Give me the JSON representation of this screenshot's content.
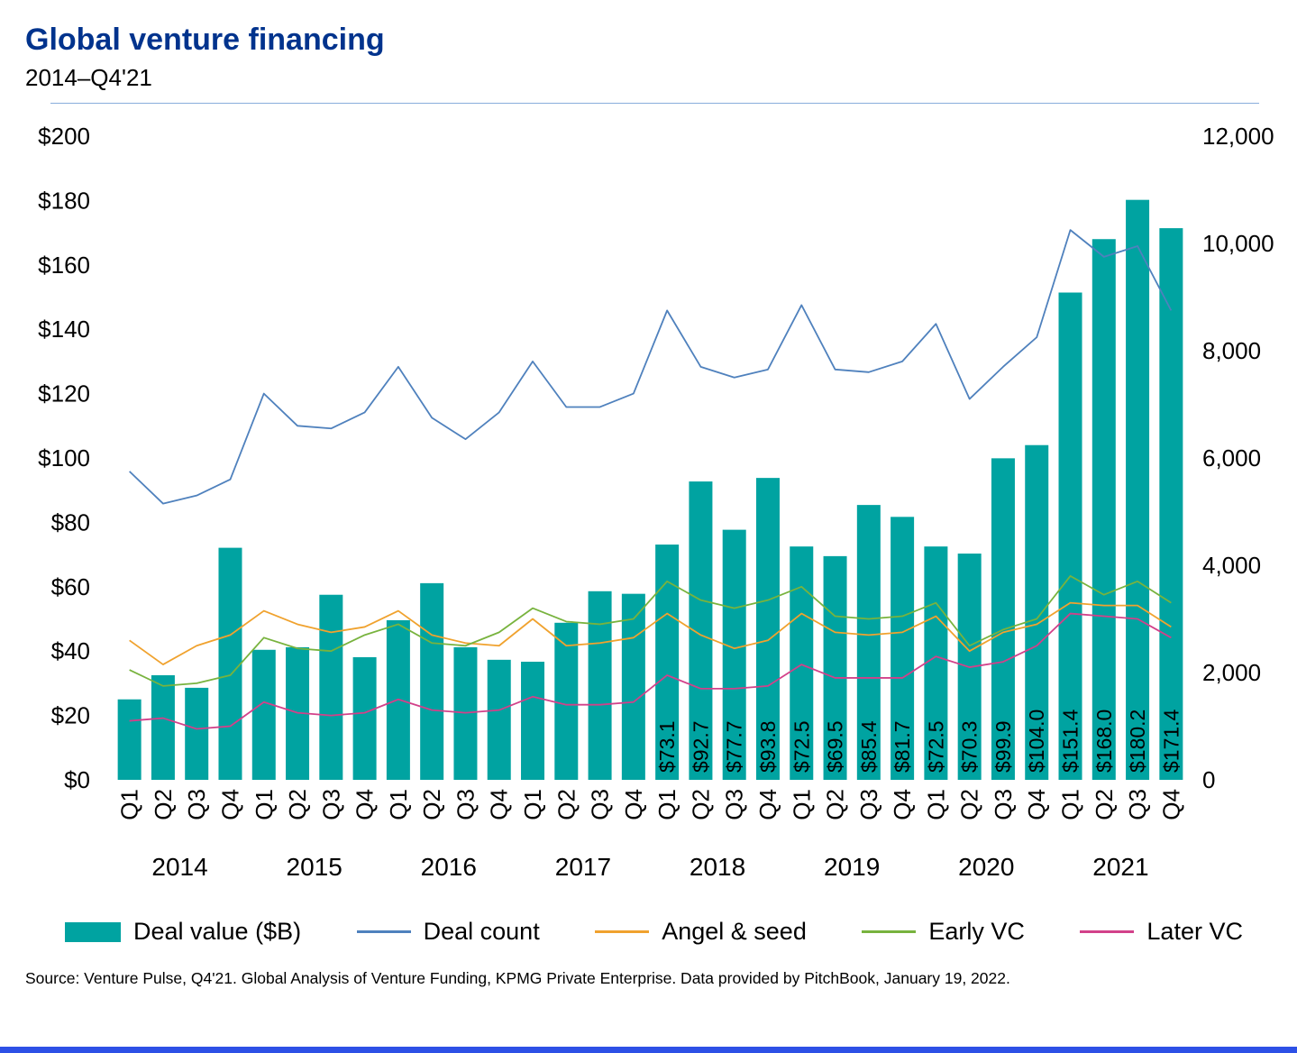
{
  "header": {
    "title": "Global venture financing",
    "subtitle": "2014–Q4'21"
  },
  "chart_data": {
    "type": "bar",
    "title": "Global venture financing",
    "subtitle": "2014–Q4'21",
    "x_quarters": [
      "Q1",
      "Q2",
      "Q3",
      "Q4",
      "Q1",
      "Q2",
      "Q3",
      "Q4",
      "Q1",
      "Q2",
      "Q3",
      "Q4",
      "Q1",
      "Q2",
      "Q3",
      "Q4",
      "Q1",
      "Q2",
      "Q3",
      "Q4",
      "Q1",
      "Q2",
      "Q3",
      "Q4",
      "Q1",
      "Q2",
      "Q3",
      "Q4",
      "Q1",
      "Q2",
      "Q3",
      "Q4"
    ],
    "years": [
      "2014",
      "2015",
      "2016",
      "2017",
      "2018",
      "2019",
      "2020",
      "2021"
    ],
    "left_axis": {
      "min": 0,
      "max": 200,
      "ticks": [
        "$0",
        "$20",
        "$40",
        "$60",
        "$80",
        "$100",
        "$120",
        "$140",
        "$160",
        "$180",
        "$200"
      ]
    },
    "right_axis": {
      "min": 0,
      "max": 12000,
      "ticks": [
        "0",
        "2,000",
        "4,000",
        "6,000",
        "8,000",
        "10,000",
        "12,000"
      ]
    },
    "bars": {
      "name": "Deal value ($B)",
      "color": "#00A3A1",
      "axis": "left",
      "values": [
        25.0,
        32.5,
        28.6,
        72.1,
        40.4,
        41.2,
        57.5,
        38.1,
        49.6,
        61.1,
        41.2,
        37.3,
        36.7,
        48.8,
        58.6,
        57.8,
        73.1,
        92.7,
        77.7,
        93.8,
        72.5,
        69.5,
        85.4,
        81.7,
        72.5,
        70.3,
        99.9,
        104.0,
        151.4,
        168.0,
        180.2,
        171.4
      ],
      "labels": [
        "",
        "",
        "",
        "",
        "",
        "",
        "",
        "",
        "",
        "",
        "",
        "",
        "",
        "",
        "",
        "",
        "$73.1",
        "$92.7",
        "$77.7",
        "$93.8",
        "$72.5",
        "$69.5",
        "$85.4",
        "$81.7",
        "$72.5",
        "$70.3",
        "$99.9",
        "$104.0",
        "$151.4",
        "$168.0",
        "$180.2",
        "$171.4"
      ]
    },
    "series": [
      {
        "name": "Deal count",
        "color": "#4F81BD",
        "axis": "right",
        "values": [
          5750,
          5150,
          5300,
          5600,
          7200,
          6600,
          6550,
          6850,
          7700,
          6750,
          6350,
          6850,
          7800,
          6950,
          6950,
          7200,
          8750,
          7700,
          7500,
          7650,
          8850,
          7650,
          7600,
          7800,
          8500,
          7100,
          7700,
          8250,
          10250,
          9750,
          9950,
          8750
        ]
      },
      {
        "name": "Angel & seed",
        "color": "#F0A22E",
        "axis": "right",
        "values": [
          2600,
          2150,
          2500,
          2700,
          3150,
          2900,
          2750,
          2850,
          3150,
          2700,
          2550,
          2500,
          3000,
          2500,
          2550,
          2650,
          3100,
          2700,
          2450,
          2600,
          3100,
          2750,
          2700,
          2750,
          3050,
          2400,
          2750,
          2900,
          3300,
          3250,
          3250,
          2850
        ]
      },
      {
        "name": "Early VC",
        "color": "#78B33E",
        "axis": "right",
        "values": [
          2050,
          1750,
          1800,
          1950,
          2650,
          2450,
          2400,
          2700,
          2900,
          2550,
          2500,
          2750,
          3200,
          2950,
          2900,
          3000,
          3700,
          3350,
          3200,
          3350,
          3600,
          3050,
          3000,
          3050,
          3300,
          2500,
          2800,
          3000,
          3800,
          3450,
          3700,
          3300
        ]
      },
      {
        "name": "Later VC",
        "color": "#D2418A",
        "axis": "right",
        "values": [
          1100,
          1150,
          950,
          1000,
          1450,
          1250,
          1200,
          1250,
          1500,
          1300,
          1250,
          1300,
          1550,
          1400,
          1400,
          1450,
          1950,
          1700,
          1700,
          1750,
          2150,
          1900,
          1900,
          1900,
          2300,
          2100,
          2200,
          2500,
          3100,
          3050,
          3000,
          2650
        ]
      }
    ],
    "grid": false,
    "legend_position": "bottom"
  },
  "legend": {
    "items": [
      {
        "label": "Deal value ($B)",
        "color": "#00A3A1",
        "type": "rect"
      },
      {
        "label": "Deal count",
        "color": "#4F81BD",
        "type": "line"
      },
      {
        "label": "Angel & seed",
        "color": "#F0A22E",
        "type": "line"
      },
      {
        "label": "Early VC",
        "color": "#78B33E",
        "type": "line"
      },
      {
        "label": "Later VC",
        "color": "#D2418A",
        "type": "line"
      }
    ]
  },
  "source": "Source: Venture Pulse, Q4'21. Global Analysis of Venture Funding, KPMG Private Enterprise. Data provided by PitchBook, January 19, 2022.",
  "colors": {
    "title": "#00338D",
    "divider": "#88AEDC",
    "footer_bar": "#2D50E6"
  }
}
